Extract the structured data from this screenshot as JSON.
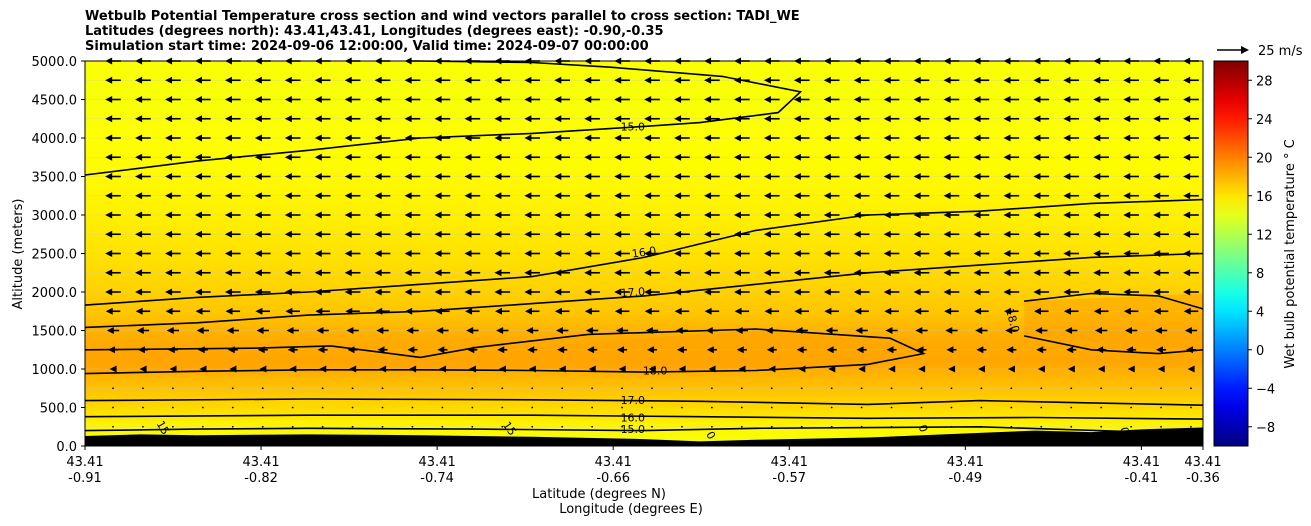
{
  "chart_data": {
    "type": "heatmap",
    "title_lines": [
      "Wetbulb Potential Temperature cross section and wind vectors parallel to cross section: TADI_WE",
      "Latitudes (degrees north): 43.41,43.41, Longitudes (degrees east): -0.90,-0.35",
      "Simulation start time: 2024-09-06 12:00:00, Valid time: 2024-09-07 00:00:00"
    ],
    "ylabel": "Altitude (meters)",
    "xlabel_lat": "Latitude (degrees N)",
    "xlabel_lon": "Longitude (degrees E)",
    "ylim": [
      0,
      5000
    ],
    "y_ticks": [
      "0.0",
      "500.0",
      "1000.0",
      "1500.0",
      "2000.0",
      "2500.0",
      "3000.0",
      "3500.0",
      "4000.0",
      "4500.0",
      "5000.0"
    ],
    "x_ticks": [
      {
        "lat": "43.41",
        "lon": "-0.91"
      },
      {
        "lat": "43.41",
        "lon": "-0.82"
      },
      {
        "lat": "43.41",
        "lon": "-0.74"
      },
      {
        "lat": "43.41",
        "lon": "-0.66"
      },
      {
        "lat": "43.41",
        "lon": "-0.57"
      },
      {
        "lat": "43.41",
        "lon": "-0.49"
      },
      {
        "lat": "43.41",
        "lon": "-0.41"
      },
      {
        "lat": "43.41",
        "lon": "-0.36"
      }
    ],
    "colorbar": {
      "label": "Wet bulb potential temperature $^\\circ$C",
      "range": [
        -10,
        30
      ],
      "ticks": [
        "−8",
        "−4",
        "0",
        "4",
        "8",
        "12",
        "16",
        "20",
        "24",
        "28"
      ]
    },
    "wind_key": {
      "label": "25 m/s"
    },
    "contour_labels": [
      "15.0",
      "16.0",
      "17.0",
      "18.0",
      "17.0",
      "16.0",
      "15.0",
      "15",
      "15",
      "0",
      "0",
      "0",
      "18.0"
    ],
    "temperature_profile": [
      {
        "altitude": 0,
        "value": 14.5
      },
      {
        "altitude": 250,
        "value": 15.3
      },
      {
        "altitude": 500,
        "value": 16.5
      },
      {
        "altitude": 800,
        "value": 17.6
      },
      {
        "altitude": 1100,
        "value": 18.5
      },
      {
        "altitude": 1400,
        "value": 18.3
      },
      {
        "altitude": 1700,
        "value": 17.3
      },
      {
        "altitude": 2000,
        "value": 16.8
      },
      {
        "altitude": 2500,
        "value": 16.1
      },
      {
        "altitude": 3000,
        "value": 15.6
      },
      {
        "altitude": 3500,
        "value": 15.2
      },
      {
        "altitude": 4000,
        "value": 15.0
      },
      {
        "altitude": 4500,
        "value": 14.7
      },
      {
        "altitude": 5000,
        "value": 14.9
      }
    ],
    "wind": {
      "direction": "westward",
      "levels": [
        {
          "altitude": 1000,
          "speed": 6
        },
        {
          "altitude": 1250,
          "speed": 9
        },
        {
          "altitude": 1500,
          "speed": 11
        },
        {
          "altitude": 1750,
          "speed": 13
        },
        {
          "altitude": 2000,
          "speed": 14
        },
        {
          "altitude": 2250,
          "speed": 14
        },
        {
          "altitude": 2500,
          "speed": 14
        },
        {
          "altitude": 2750,
          "speed": 14
        },
        {
          "altitude": 3000,
          "speed": 14
        },
        {
          "altitude": 3250,
          "speed": 14
        },
        {
          "altitude": 3500,
          "speed": 14
        },
        {
          "altitude": 3750,
          "speed": 14
        },
        {
          "altitude": 4000,
          "speed": 14
        },
        {
          "altitude": 4250,
          "speed": 14
        },
        {
          "altitude": 4500,
          "speed": 14
        },
        {
          "altitude": 4750,
          "speed": 14
        },
        {
          "altitude": 5000,
          "speed": 14
        }
      ]
    },
    "contours": [
      {
        "label": "15.0",
        "altitudes": [
          [
            0.0,
            3520
          ],
          [
            0.1,
            3700
          ],
          [
            0.2,
            3840
          ],
          [
            0.3,
            4000
          ],
          [
            0.4,
            4060
          ],
          [
            0.5,
            4150
          ],
          [
            0.55,
            4200
          ],
          [
            0.62,
            4330
          ],
          [
            0.64,
            4600
          ],
          [
            0.57,
            4800
          ],
          [
            0.47,
            4920
          ],
          [
            0.4,
            4980
          ],
          [
            0.3,
            5000
          ]
        ]
      },
      {
        "label": "16.0",
        "altitudes": [
          [
            0.0,
            1830
          ],
          [
            0.1,
            1930
          ],
          [
            0.2,
            2000
          ],
          [
            0.3,
            2100
          ],
          [
            0.4,
            2200
          ],
          [
            0.5,
            2450
          ],
          [
            0.6,
            2800
          ],
          [
            0.7,
            3000
          ],
          [
            0.8,
            3050
          ],
          [
            0.9,
            3150
          ],
          [
            1.0,
            3200
          ]
        ]
      },
      {
        "label": "17.0",
        "altitudes": [
          [
            0.0,
            1540
          ],
          [
            0.1,
            1600
          ],
          [
            0.2,
            1700
          ],
          [
            0.3,
            1750
          ],
          [
            0.4,
            1850
          ],
          [
            0.5,
            1950
          ],
          [
            0.6,
            2100
          ],
          [
            0.7,
            2250
          ],
          [
            0.8,
            2350
          ],
          [
            0.9,
            2450
          ],
          [
            1.0,
            2500
          ]
        ]
      },
      {
        "label": "18.0",
        "altitudes": [
          [
            0.0,
            940
          ],
          [
            0.1,
            970
          ],
          [
            0.2,
            990
          ],
          [
            0.3,
            990
          ],
          [
            0.4,
            980
          ],
          [
            0.5,
            960
          ],
          [
            0.6,
            980
          ],
          [
            0.7,
            1060
          ],
          [
            0.75,
            1200
          ],
          [
            0.72,
            1400
          ],
          [
            0.6,
            1520
          ],
          [
            0.45,
            1450
          ],
          [
            0.35,
            1280
          ],
          [
            0.3,
            1150
          ],
          [
            0.22,
            1300
          ],
          [
            0.15,
            1270
          ],
          [
            0.0,
            1250
          ]
        ]
      },
      {
        "label": "18.0",
        "altitudes": [
          [
            0.84,
            1880
          ],
          [
            0.9,
            1980
          ],
          [
            0.96,
            1950
          ],
          [
            1.0,
            1780
          ]
        ]
      },
      {
        "label": "18.0",
        "altitudes": [
          [
            0.84,
            1430
          ],
          [
            0.9,
            1250
          ],
          [
            0.96,
            1200
          ],
          [
            1.0,
            1250
          ]
        ]
      },
      {
        "label": "17.0",
        "altitudes": [
          [
            0.0,
            590
          ],
          [
            0.2,
            610
          ],
          [
            0.4,
            600
          ],
          [
            0.55,
            580
          ],
          [
            0.7,
            540
          ],
          [
            0.8,
            590
          ],
          [
            0.9,
            560
          ],
          [
            1.0,
            530
          ]
        ]
      },
      {
        "label": "16.0",
        "altitudes": [
          [
            0.0,
            380
          ],
          [
            0.2,
            400
          ],
          [
            0.4,
            400
          ],
          [
            0.55,
            380
          ],
          [
            0.7,
            360
          ],
          [
            0.85,
            370
          ],
          [
            1.0,
            350
          ]
        ]
      },
      {
        "label": "15.0",
        "altitudes": [
          [
            0.0,
            200
          ],
          [
            0.1,
            220
          ],
          [
            0.2,
            230
          ],
          [
            0.35,
            220
          ],
          [
            0.5,
            200
          ],
          [
            0.6,
            230
          ],
          [
            0.8,
            250
          ],
          [
            0.95,
            180
          ],
          [
            1.0,
            150
          ]
        ]
      }
    ],
    "terrain": [
      [
        0.0,
        130
      ],
      [
        0.05,
        150
      ],
      [
        0.1,
        140
      ],
      [
        0.2,
        150
      ],
      [
        0.3,
        140
      ],
      [
        0.4,
        120
      ],
      [
        0.5,
        90
      ],
      [
        0.55,
        60
      ],
      [
        0.6,
        80
      ],
      [
        0.7,
        110
      ],
      [
        0.8,
        170
      ],
      [
        0.85,
        200
      ],
      [
        0.9,
        180
      ],
      [
        0.95,
        220
      ],
      [
        1.0,
        240
      ]
    ]
  }
}
